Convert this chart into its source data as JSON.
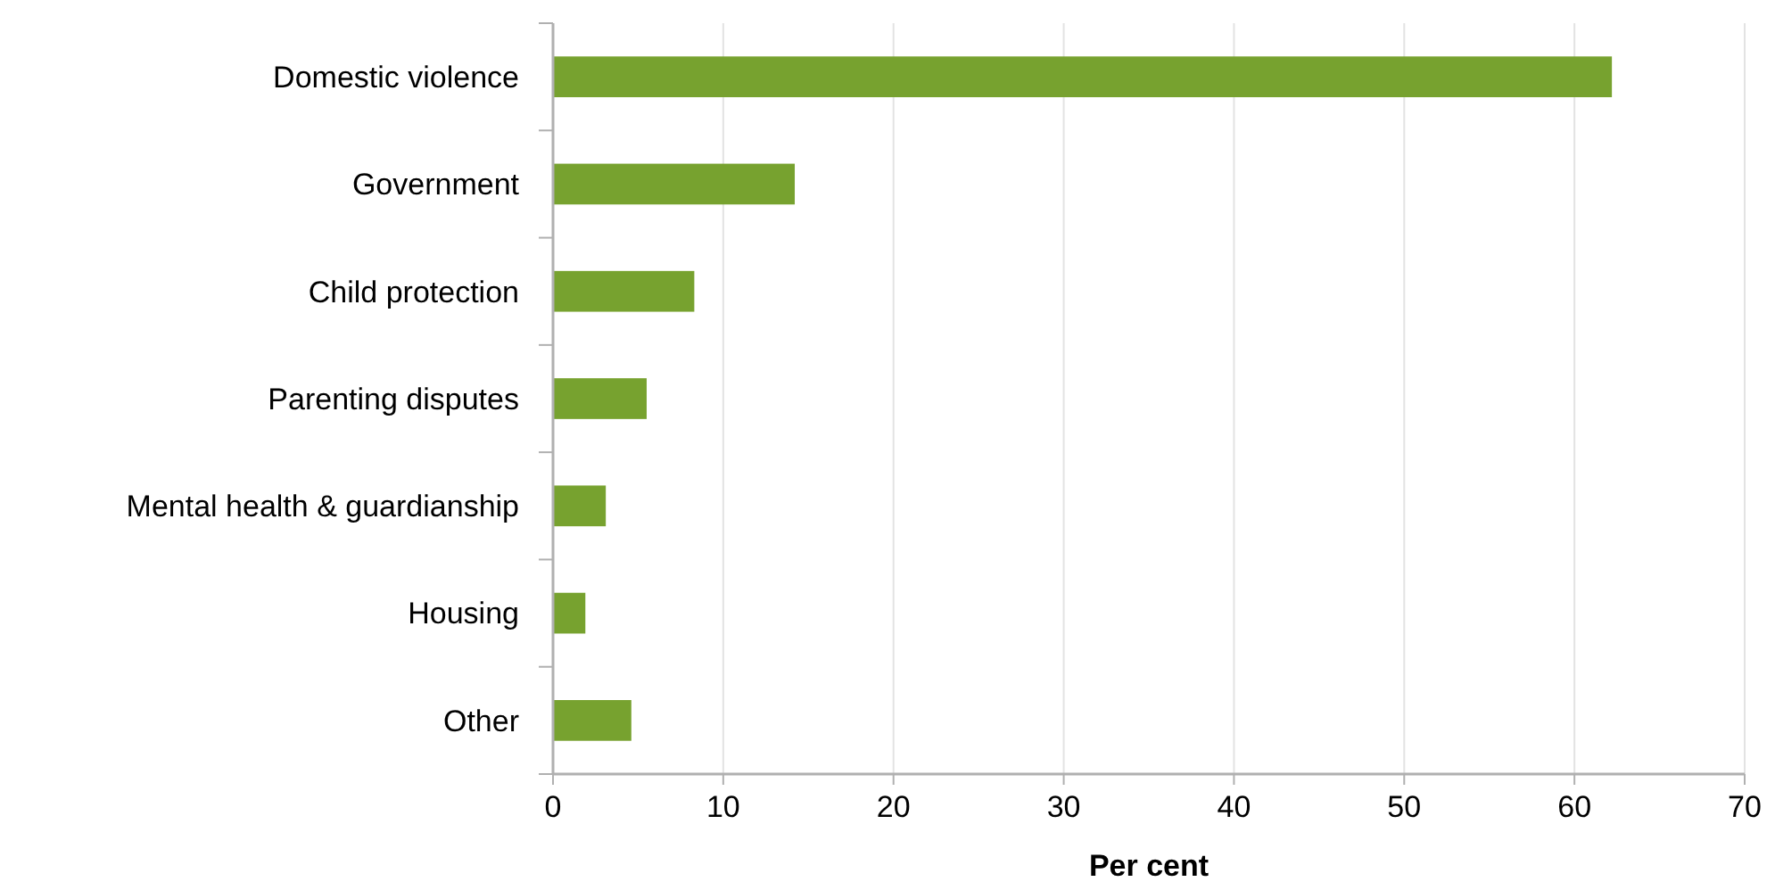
{
  "chart_data": {
    "type": "bar",
    "orientation": "horizontal",
    "xlabel": "Per cent",
    "categories": [
      "Domestic violence",
      "Government",
      "Child protection",
      "Parenting disputes",
      "Mental health & guardianship",
      "Housing",
      "Other"
    ],
    "values": [
      62.2,
      14.2,
      8.3,
      5.5,
      3.1,
      1.9,
      4.6
    ],
    "color": "#77a22f",
    "xlim": [
      0,
      70
    ],
    "xticks": [
      0,
      10,
      20,
      30,
      40,
      50,
      60,
      70
    ],
    "grid": "x"
  }
}
